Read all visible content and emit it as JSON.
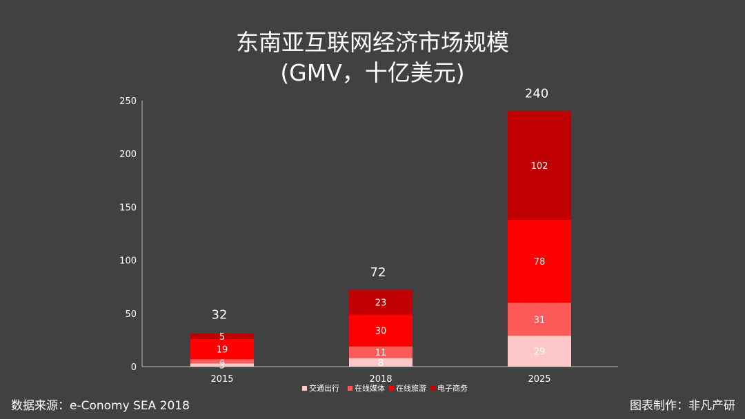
{
  "title_line1": "东南亚互联网经济市场规模",
  "title_line2": "(GMV，十亿美元)",
  "source_text": "数据来源：e-Conomy SEA 2018",
  "credit_text": "图表制作：非凡产研",
  "chart_data": {
    "type": "bar",
    "stacked": true,
    "title": "东南亚互联网经济市场规模 (GMV，十亿美元)",
    "categories": [
      "2015",
      "2018",
      "2025"
    ],
    "series": [
      {
        "name": "交通出行",
        "values": [
          3,
          8,
          29
        ],
        "color": "#ffc8c8"
      },
      {
        "name": "在线媒体",
        "values": [
          4,
          11,
          31
        ],
        "color": "#ff5a5a"
      },
      {
        "name": "在线旅游",
        "values": [
          19,
          30,
          78
        ],
        "color": "#ff0000"
      },
      {
        "name": "电子商务",
        "values": [
          5,
          23,
          102
        ],
        "color": "#c00000"
      }
    ],
    "totals": [
      32,
      72,
      240
    ],
    "ylim": [
      0,
      250
    ],
    "yticks": [
      0,
      50,
      100,
      150,
      200,
      250
    ],
    "xlabel": "",
    "ylabel": "",
    "grid": false,
    "legend_position": "bottom"
  }
}
